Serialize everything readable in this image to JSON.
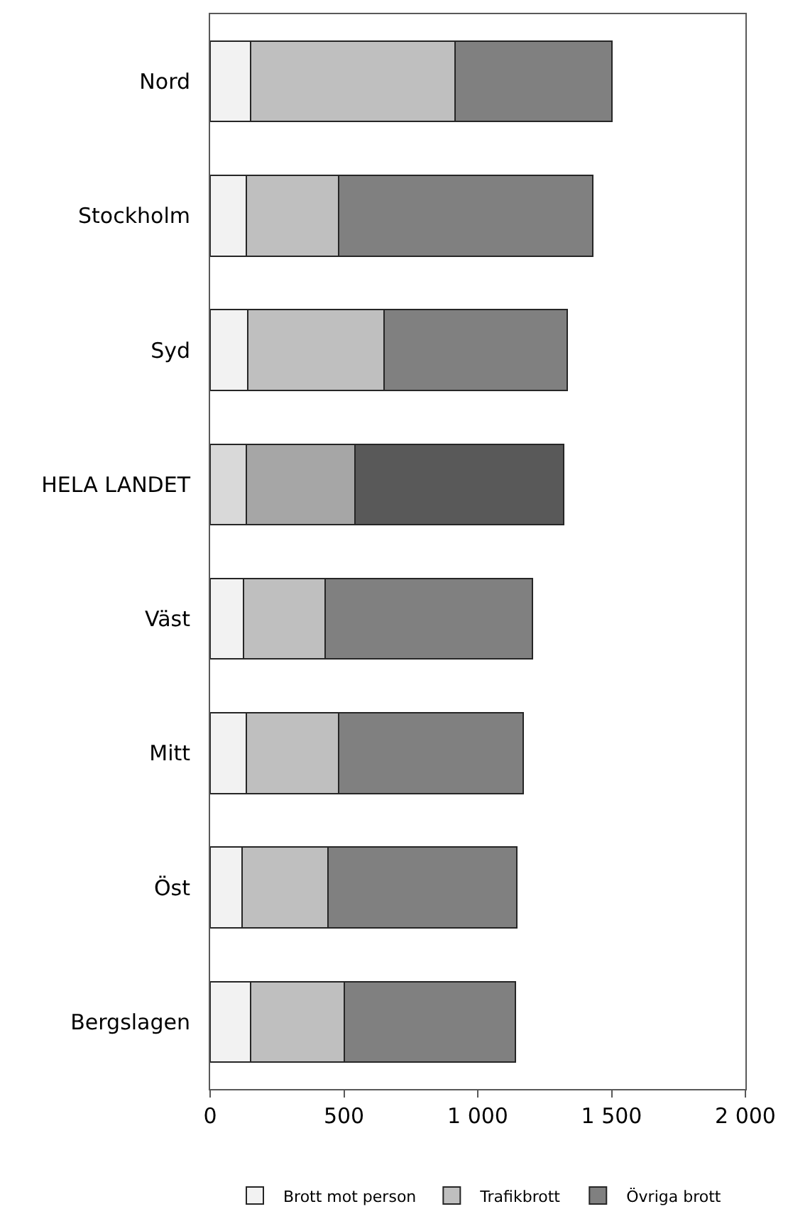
{
  "chart_data": {
    "type": "bar",
    "orientation": "horizontal",
    "stacked": true,
    "categories": [
      "Nord",
      "Stockholm",
      "Syd",
      "HELA LANDET",
      "Väst",
      "Mitt",
      "Öst",
      "Bergslagen"
    ],
    "series": [
      {
        "name": "Brott mot person",
        "color": "#f2f2f2",
        "colors": [
          "#f2f2f2",
          "#f2f2f2",
          "#f2f2f2",
          "#d9d9d9",
          "#f2f2f2",
          "#f2f2f2",
          "#f2f2f2",
          "#f2f2f2"
        ],
        "values": [
          150,
          135,
          140,
          135,
          125,
          135,
          120,
          150
        ]
      },
      {
        "name": "Trafikbrott",
        "color": "#bfbfbf",
        "colors": [
          "#bfbfbf",
          "#bfbfbf",
          "#bfbfbf",
          "#a6a6a6",
          "#bfbfbf",
          "#bfbfbf",
          "#bfbfbf",
          "#bfbfbf"
        ],
        "values": [
          765,
          345,
          510,
          405,
          305,
          345,
          320,
          350
        ]
      },
      {
        "name": "Övriga brott",
        "color": "#808080",
        "colors": [
          "#808080",
          "#808080",
          "#808080",
          "#595959",
          "#808080",
          "#808080",
          "#808080",
          "#808080"
        ],
        "values": [
          585,
          950,
          685,
          780,
          775,
          690,
          705,
          640
        ]
      }
    ],
    "xlim": [
      0,
      2000
    ],
    "xticks": [
      0,
      500,
      {
        "value": 1000,
        "label": "1 000"
      },
      {
        "value": 1500,
        "label": "1 500"
      },
      {
        "value": 2000,
        "label": "2 000"
      }
    ],
    "grid": false,
    "legend": "bottom"
  }
}
